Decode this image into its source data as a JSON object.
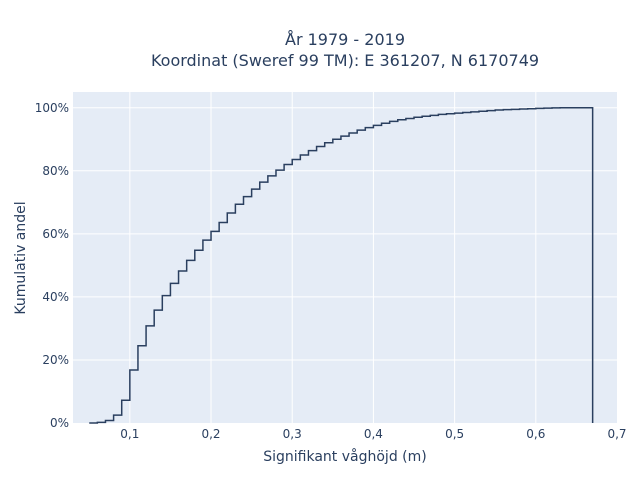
{
  "chart_data": {
    "type": "line",
    "line_shape": "step",
    "title": [
      "År 1979 - 2019",
      "Koordinat (Sweref 99 TM): E 361207, N 6170749"
    ],
    "xlabel": "Signifikant våghöjd (m)",
    "ylabel": "Kumulativ andel",
    "xlim": [
      0.03,
      0.7
    ],
    "ylim": [
      0,
      1.05
    ],
    "x_ticks": [
      0.1,
      0.2,
      0.3,
      0.4,
      0.5,
      0.6,
      0.7
    ],
    "x_tick_labels": [
      "0,1",
      "0,2",
      "0,3",
      "0,4",
      "0,5",
      "0,6",
      "0,7"
    ],
    "y_ticks": [
      0,
      0.2,
      0.4,
      0.6,
      0.8,
      1.0
    ],
    "y_tick_labels": [
      "0%",
      "20%",
      "40%",
      "60%",
      "80%",
      "100%"
    ],
    "grid": true,
    "colors": {
      "background": "#e5ecf6",
      "grid": "#ffffff",
      "line": "#2a3f5f"
    },
    "series": [
      {
        "x": [
          0.05,
          0.06,
          0.07,
          0.08,
          0.09,
          0.1,
          0.11,
          0.12,
          0.13,
          0.14,
          0.15,
          0.16,
          0.17,
          0.18,
          0.19,
          0.2,
          0.21,
          0.22,
          0.23,
          0.24,
          0.25,
          0.26,
          0.27,
          0.28,
          0.29,
          0.3,
          0.31,
          0.32,
          0.33,
          0.34,
          0.35,
          0.36,
          0.37,
          0.38,
          0.39,
          0.4,
          0.41,
          0.42,
          0.43,
          0.44,
          0.45,
          0.46,
          0.47,
          0.48,
          0.49,
          0.5,
          0.51,
          0.52,
          0.53,
          0.54,
          0.55,
          0.56,
          0.57,
          0.58,
          0.59,
          0.6,
          0.61,
          0.62,
          0.63,
          0.64,
          0.65,
          0.66,
          0.67
        ],
        "y": [
          0.0,
          0.002,
          0.008,
          0.025,
          0.072,
          0.168,
          0.245,
          0.308,
          0.358,
          0.404,
          0.443,
          0.482,
          0.516,
          0.548,
          0.58,
          0.608,
          0.636,
          0.666,
          0.694,
          0.718,
          0.742,
          0.764,
          0.784,
          0.802,
          0.82,
          0.836,
          0.85,
          0.864,
          0.877,
          0.889,
          0.9,
          0.91,
          0.92,
          0.929,
          0.937,
          0.944,
          0.951,
          0.957,
          0.962,
          0.966,
          0.97,
          0.973,
          0.976,
          0.979,
          0.981,
          0.983,
          0.985,
          0.987,
          0.989,
          0.991,
          0.993,
          0.994,
          0.995,
          0.996,
          0.997,
          0.998,
          0.999,
          0.9995,
          1.0,
          1.0,
          1.0,
          1.0,
          1.0
        ]
      }
    ]
  }
}
